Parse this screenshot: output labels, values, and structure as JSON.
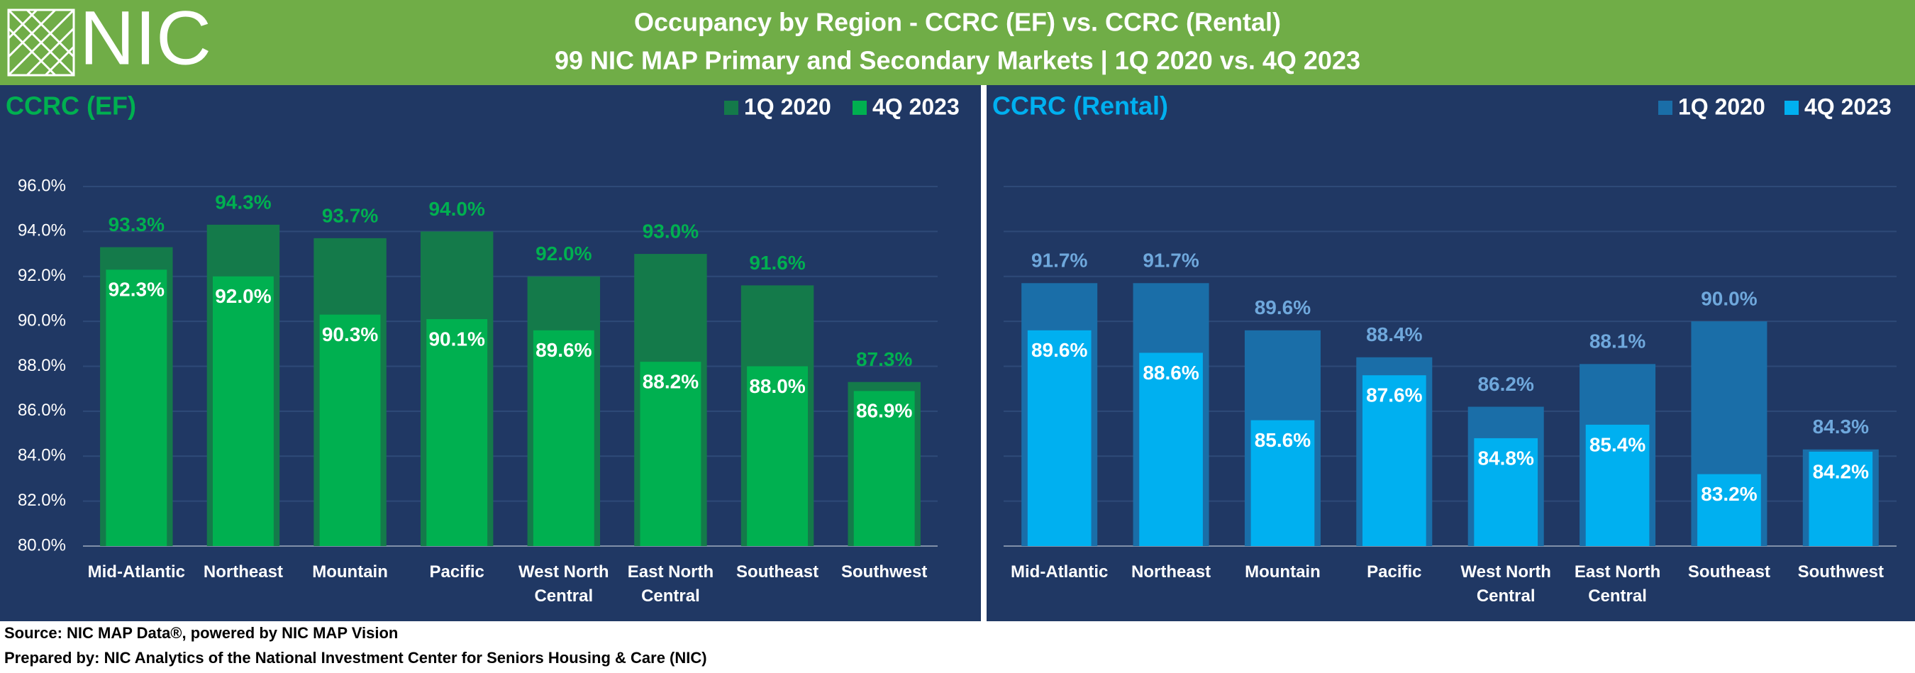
{
  "header": {
    "logo": "NIC",
    "title": "Occupancy by Region - CCRC (EF) vs. CCRC (Rental)",
    "subtitle": "99 NIC MAP Primary and Secondary Markets | 1Q 2020 vs. 4Q 2023"
  },
  "chart_data": [
    {
      "type": "bar",
      "title": "CCRC (EF)",
      "categories": [
        "Mid-Atlantic",
        "Northeast",
        "Mountain",
        "Pacific",
        "West North Central",
        "East North Central",
        "Southeast",
        "Southwest"
      ],
      "series": [
        {
          "name": "1Q 2020",
          "color": "#147a4a",
          "values": [
            93.3,
            94.3,
            93.7,
            94.0,
            92.0,
            93.0,
            91.6,
            87.3
          ],
          "value_labels": [
            "93.3%",
            "94.3%",
            "93.7%",
            "94.0%",
            "92.0%",
            "93.0%",
            "91.6%",
            "87.3%"
          ],
          "label_color": "#00b050"
        },
        {
          "name": "4Q 2023",
          "color": "#00b050",
          "values": [
            92.3,
            92.0,
            90.3,
            90.1,
            89.6,
            88.2,
            88.0,
            86.9
          ],
          "value_labels": [
            "92.3%",
            "92.0%",
            "90.3%",
            "90.1%",
            "89.6%",
            "88.2%",
            "88.0%",
            "86.9%"
          ],
          "label_color": "#ffffff"
        }
      ],
      "ylim": [
        80,
        96
      ],
      "yticks": [
        {
          "value": 80,
          "label": "80.0%"
        },
        {
          "value": 82,
          "label": "82.0%"
        },
        {
          "value": 84,
          "label": "84.0%"
        },
        {
          "value": 86,
          "label": "86.0%"
        },
        {
          "value": 88,
          "label": "88.0%"
        },
        {
          "value": 90,
          "label": "90.0%"
        },
        {
          "value": 92,
          "label": "92.0%"
        },
        {
          "value": 94,
          "label": "94.0%"
        },
        {
          "value": 96,
          "label": "96.0%"
        }
      ],
      "grid": true,
      "title_color": "#00b050"
    },
    {
      "type": "bar",
      "title": "CCRC (Rental)",
      "categories": [
        "Mid-Atlantic",
        "Northeast",
        "Mountain",
        "Pacific",
        "West North Central",
        "East North Central",
        "Southeast",
        "Southwest"
      ],
      "series": [
        {
          "name": "1Q 2020",
          "color": "#1a6ea8",
          "values": [
            91.7,
            91.7,
            89.6,
            88.4,
            86.2,
            88.1,
            90.0,
            84.3
          ],
          "value_labels": [
            "91.7%",
            "91.7%",
            "89.6%",
            "88.4%",
            "86.2%",
            "88.1%",
            "90.0%",
            "84.3%"
          ],
          "label_color": "#6fa8dc"
        },
        {
          "name": "4Q 2023",
          "color": "#00b0f0",
          "values": [
            89.6,
            88.6,
            85.6,
            87.6,
            84.8,
            85.4,
            83.2,
            84.2
          ],
          "value_labels": [
            "89.6%",
            "88.6%",
            "85.6%",
            "87.6%",
            "84.8%",
            "85.4%",
            "83.2%",
            "84.2%"
          ],
          "label_color": "#ffffff"
        }
      ],
      "ylim": [
        80,
        96
      ],
      "yticks": [
        80,
        82,
        84,
        86,
        88,
        90,
        92,
        94,
        96
      ],
      "grid": true,
      "title_color": "#00b0f0"
    }
  ],
  "footer": {
    "source": "Source: NIC MAP Data®, powered by NIC MAP Vision",
    "prepared_by": "Prepared by: NIC Analytics of the National Investment Center for Seniors Housing & Care (NIC)"
  }
}
